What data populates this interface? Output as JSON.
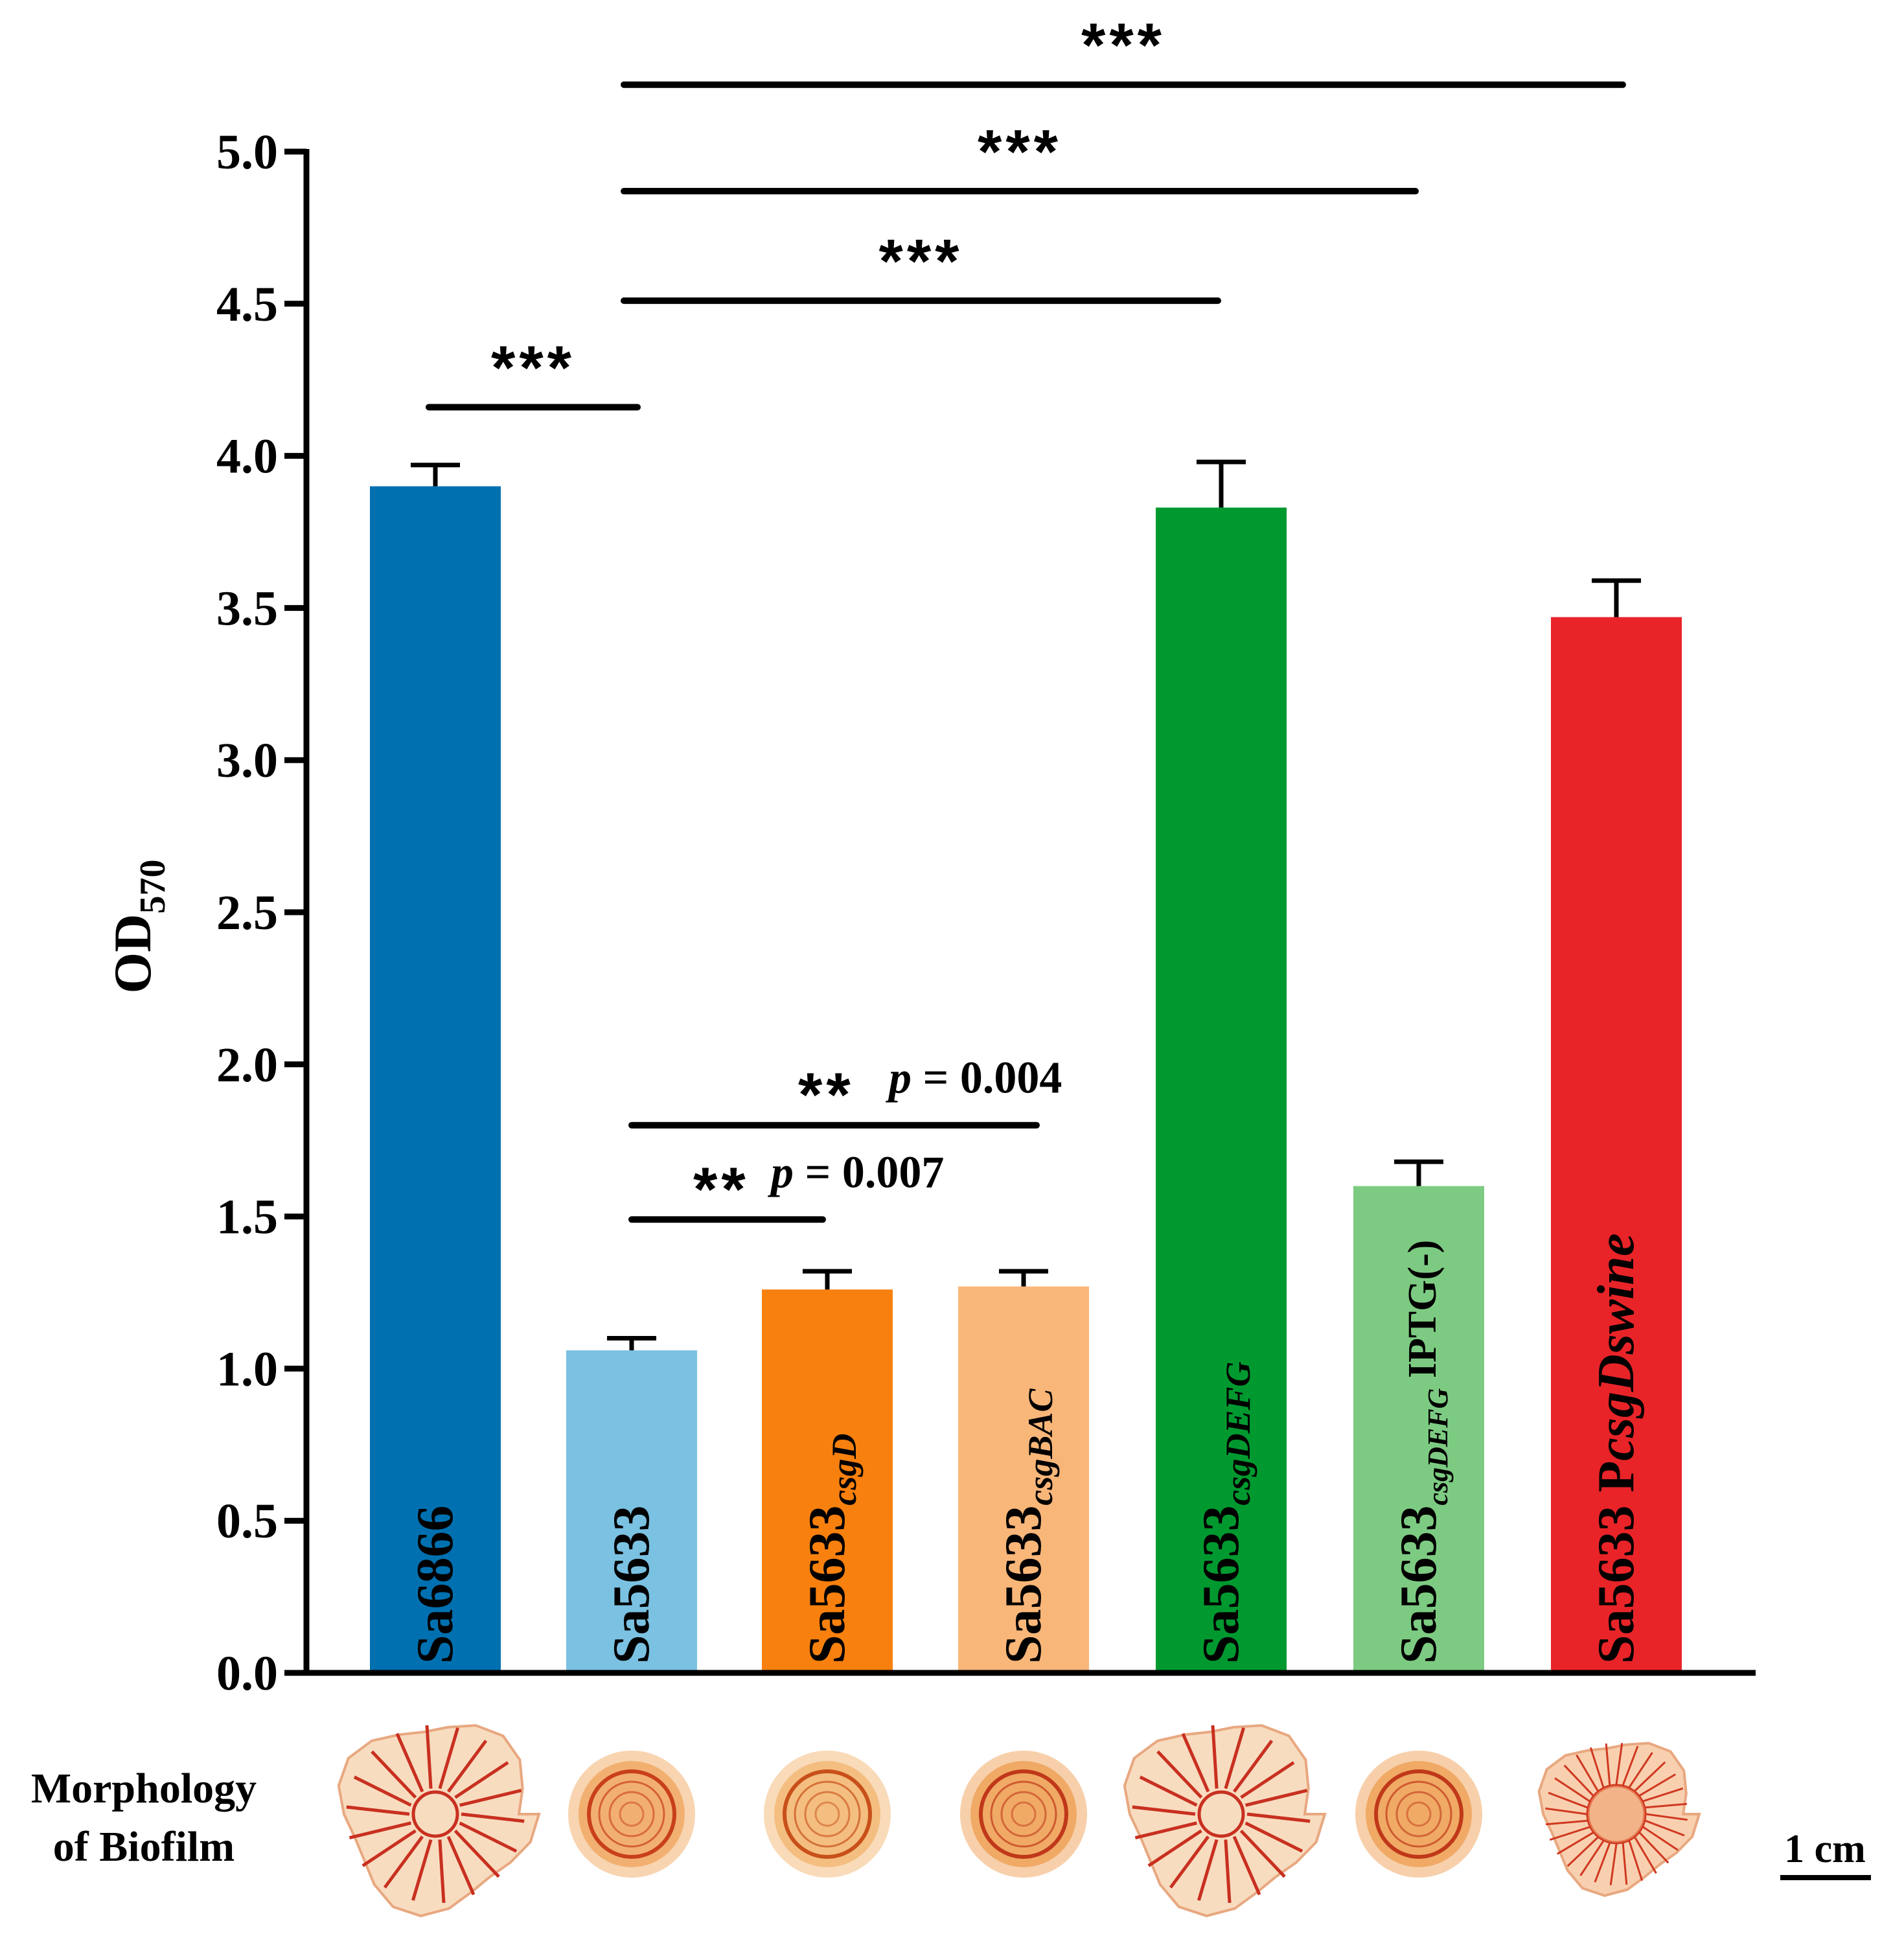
{
  "chart_data": {
    "type": "bar",
    "ylabel": "OD",
    "ylabel_sub": "570",
    "ylim": [
      0,
      5.0
    ],
    "yticks": [
      "0.0",
      "0.5",
      "1.0",
      "1.5",
      "2.0",
      "2.5",
      "3.0",
      "3.5",
      "4.0",
      "4.5",
      "5.0"
    ],
    "grid": false,
    "bars": [
      {
        "label_main": "Sa6866",
        "label_sub": "",
        "label_suffix": "",
        "label_suffix_italic": "",
        "value": 3.9,
        "error": 0.07,
        "color": "#0070b0"
      },
      {
        "label_main": "Sa5633",
        "label_sub": "",
        "label_suffix": "",
        "label_suffix_italic": "",
        "value": 1.06,
        "error": 0.04,
        "color": "#7bc1e1"
      },
      {
        "label_main": "Sa5633",
        "label_sub": "csgD",
        "label_suffix": "",
        "label_suffix_italic": "",
        "value": 1.26,
        "error": 0.06,
        "color": "#f7800e"
      },
      {
        "label_main": "Sa5633",
        "label_sub": "csgBAC",
        "label_suffix": "",
        "label_suffix_italic": "",
        "value": 1.27,
        "error": 0.05,
        "color": "#f9b679"
      },
      {
        "label_main": "Sa5633",
        "label_sub": "csgDEFG",
        "label_suffix": "",
        "label_suffix_italic": "",
        "value": 3.83,
        "error": 0.15,
        "color": "#00992f"
      },
      {
        "label_main": "Sa5633",
        "label_sub": "csgDEFG",
        "label_suffix": " IPTG(-)",
        "label_suffix_italic": "",
        "value": 1.6,
        "error": 0.08,
        "color": "#7dcb82"
      },
      {
        "label_main": "Sa5633 P",
        "label_sub": "",
        "label_suffix": "",
        "label_suffix_italic": "csgDswine",
        "value": 3.47,
        "error": 0.12,
        "color": "#e82428"
      }
    ],
    "comparisons": [
      {
        "from": 0,
        "to": 1,
        "y": 4.16,
        "stars": "***",
        "p": ""
      },
      {
        "from": 1,
        "to": 4,
        "y": 4.51,
        "stars": "***",
        "p": ""
      },
      {
        "from": 1,
        "to": 5,
        "y": 4.87,
        "stars": "***",
        "p": ""
      },
      {
        "from": 1,
        "to": 6,
        "y": 5.22,
        "stars": "***",
        "p": ""
      },
      {
        "from": 1,
        "to": 2,
        "y": 1.49,
        "stars": "**",
        "p_label": "p",
        "p_value": " = 0.007"
      },
      {
        "from": 1,
        "to": 3,
        "y": 1.8,
        "stars": "**",
        "p_label": "p",
        "p_value": " = 0.004"
      }
    ]
  },
  "morphology": {
    "label_line1": "Morphology",
    "label_line2": "of Biofilm",
    "scale_bar": "1 cm",
    "colonies": [
      {
        "type": "wrinkled-large",
        "fill": "#f8dcc0",
        "line": "#c83020"
      },
      {
        "type": "ring-small",
        "fill": "#f2b070",
        "line": "#c8401a"
      },
      {
        "type": "ring-small",
        "fill": "#f4be80",
        "line": "#c8501a"
      },
      {
        "type": "ring-small",
        "fill": "#f0aa66",
        "line": "#c0381a"
      },
      {
        "type": "wrinkled-large",
        "fill": "#f8dcc0",
        "line": "#c83020"
      },
      {
        "type": "ring-small",
        "fill": "#f0aa66",
        "line": "#c0381a"
      },
      {
        "type": "wrinkled-medium",
        "fill": "#f8d0b0",
        "line": "#d03820"
      }
    ]
  }
}
